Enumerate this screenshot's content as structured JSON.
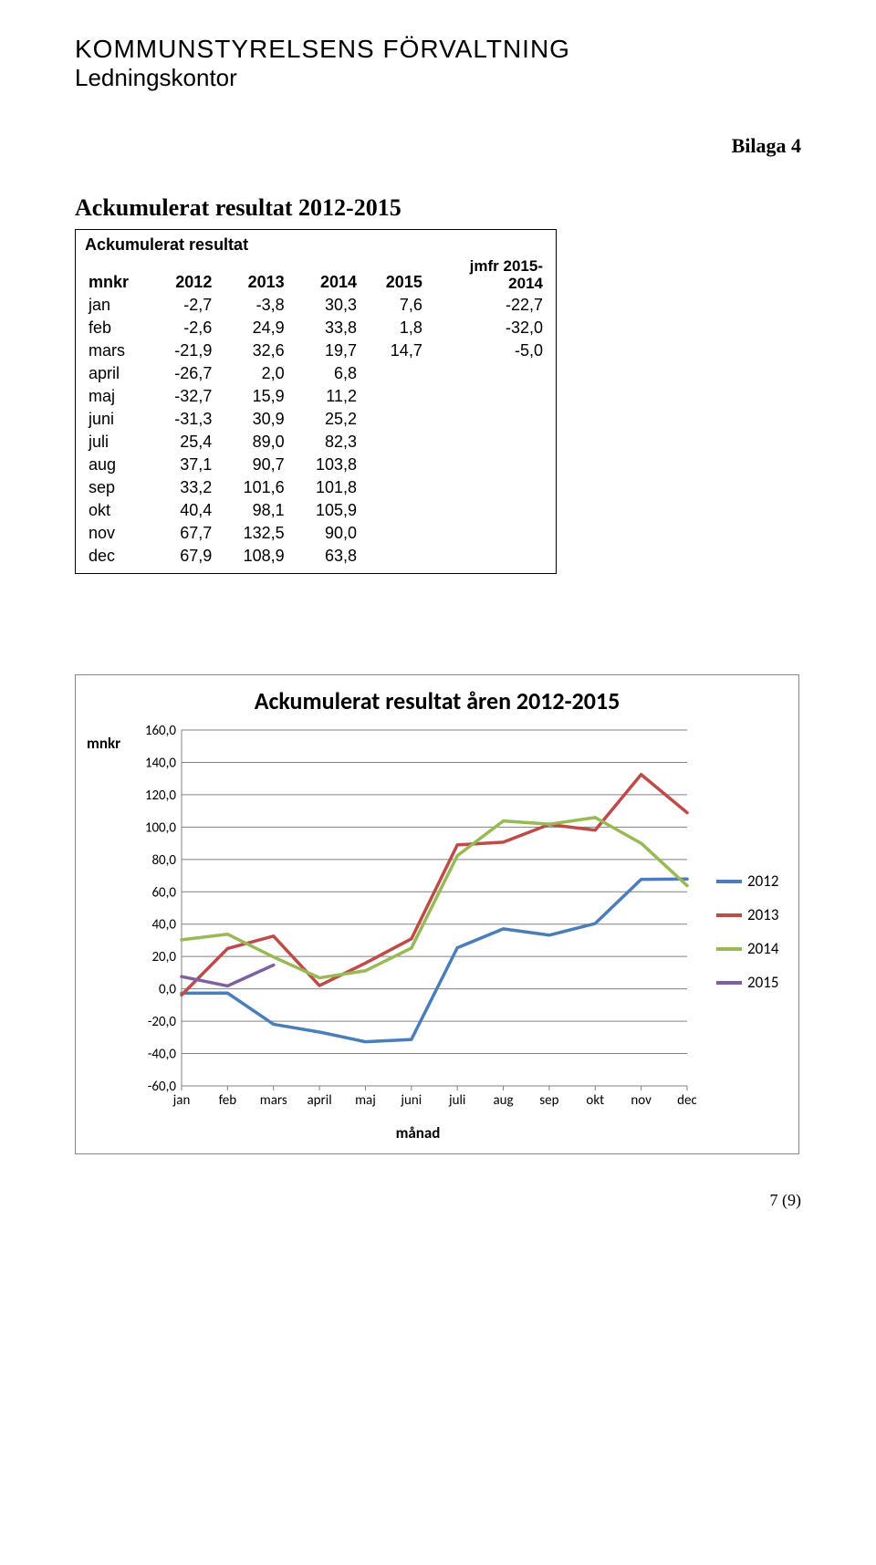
{
  "header": {
    "org1": "KOMMUNSTYRELSENS FÖRVALTNING",
    "org2": "Ledningskontor",
    "bilaga": "Bilaga 4"
  },
  "section_title": "Ackumulerat resultat 2012-2015",
  "table": {
    "title": "Ackumulerat resultat",
    "row_header": "mnkr",
    "columns": [
      "2012",
      "2013",
      "2014",
      "2015"
    ],
    "jmfr_header_line1": "jmfr 2015-",
    "jmfr_header_line2": "2014",
    "rows": [
      {
        "m": "jan",
        "v": [
          "-2,7",
          "-3,8",
          "30,3",
          "7,6",
          "-22,7"
        ]
      },
      {
        "m": "feb",
        "v": [
          "-2,6",
          "24,9",
          "33,8",
          "1,8",
          "-32,0"
        ]
      },
      {
        "m": "mars",
        "v": [
          "-21,9",
          "32,6",
          "19,7",
          "14,7",
          "-5,0"
        ]
      },
      {
        "m": "april",
        "v": [
          "-26,7",
          "2,0",
          "6,8",
          "",
          ""
        ]
      },
      {
        "m": "maj",
        "v": [
          "-32,7",
          "15,9",
          "11,2",
          "",
          ""
        ]
      },
      {
        "m": "juni",
        "v": [
          "-31,3",
          "30,9",
          "25,2",
          "",
          ""
        ]
      },
      {
        "m": "juli",
        "v": [
          "25,4",
          "89,0",
          "82,3",
          "",
          ""
        ]
      },
      {
        "m": "aug",
        "v": [
          "37,1",
          "90,7",
          "103,8",
          "",
          ""
        ]
      },
      {
        "m": "sep",
        "v": [
          "33,2",
          "101,6",
          "101,8",
          "",
          ""
        ]
      },
      {
        "m": "okt",
        "v": [
          "40,4",
          "98,1",
          "105,9",
          "",
          ""
        ]
      },
      {
        "m": "nov",
        "v": [
          "67,7",
          "132,5",
          "90,0",
          "",
          ""
        ]
      },
      {
        "m": "dec",
        "v": [
          "67,9",
          "108,9",
          "63,8",
          "",
          ""
        ]
      }
    ]
  },
  "chart": {
    "title": "Ackumulerat resultat åren 2012-2015",
    "ylabel": "mnkr",
    "xlabel": "månad",
    "type": "line",
    "categories": [
      "jan",
      "feb",
      "mars",
      "april",
      "maj",
      "juni",
      "juli",
      "aug",
      "sep",
      "okt",
      "nov",
      "dec"
    ],
    "series": [
      {
        "name": "2012",
        "color": "#4a7ebb",
        "values": [
          -2.7,
          -2.6,
          -21.9,
          -26.7,
          -32.7,
          -31.3,
          25.4,
          37.1,
          33.2,
          40.4,
          67.7,
          67.9
        ]
      },
      {
        "name": "2013",
        "color": "#be4b48",
        "values": [
          -3.8,
          24.9,
          32.6,
          2.0,
          15.9,
          30.9,
          89.0,
          90.7,
          101.6,
          98.1,
          132.5,
          108.9
        ]
      },
      {
        "name": "2014",
        "color": "#98b954",
        "values": [
          30.3,
          33.8,
          19.7,
          6.8,
          11.2,
          25.2,
          82.3,
          103.8,
          101.8,
          105.9,
          90.0,
          63.8
        ]
      },
      {
        "name": "2015",
        "color": "#7d60a0",
        "values": [
          7.6,
          1.8,
          14.7
        ]
      }
    ],
    "ylim": [
      -60,
      160
    ],
    "ytick_step": 20,
    "line_width": 3.5,
    "grid_color": "#808080",
    "border_color": "#808080",
    "background_color": "#ffffff",
    "tick_font_size": 15
  },
  "footer": "7 (9)"
}
